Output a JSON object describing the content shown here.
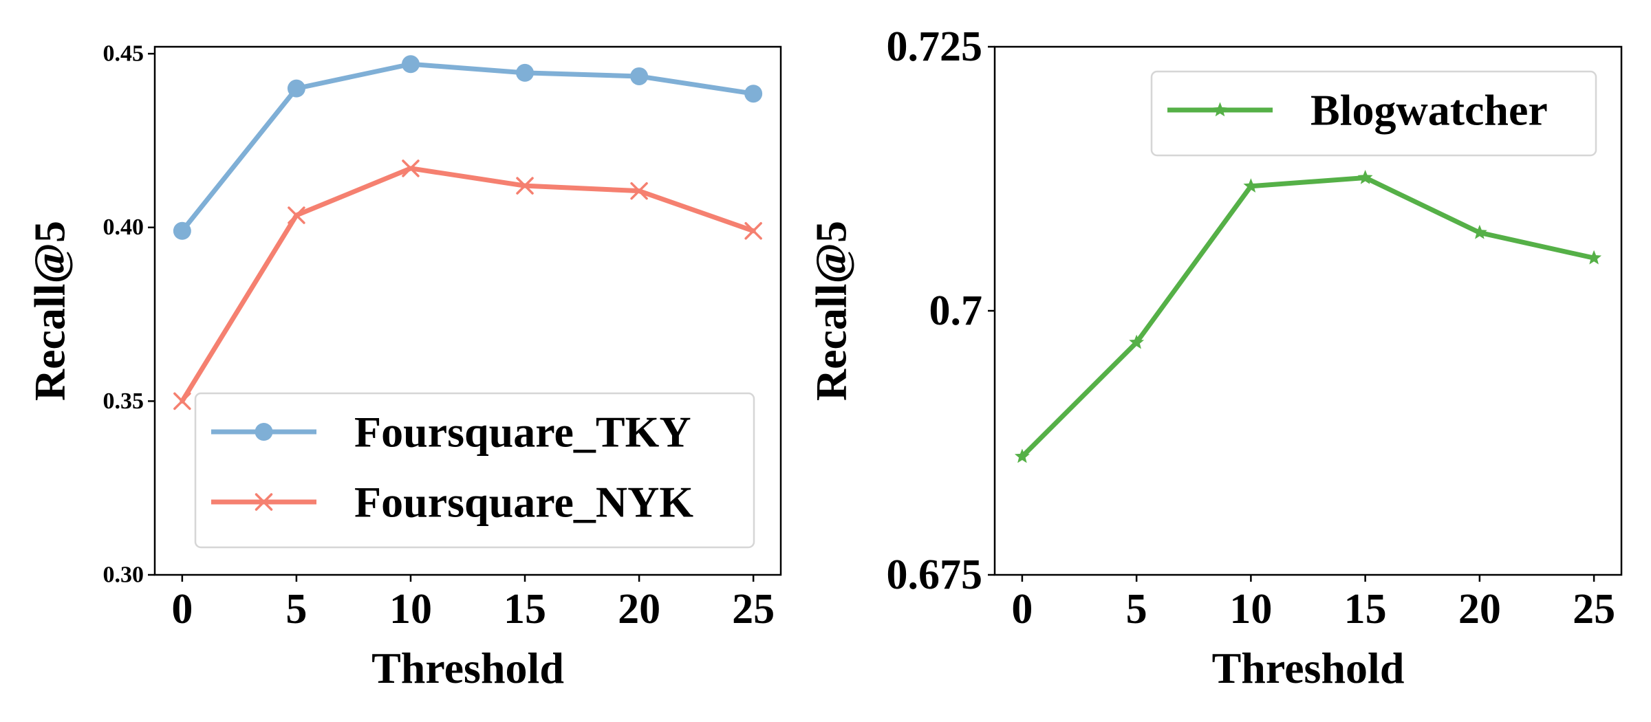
{
  "chart_data": [
    {
      "type": "line",
      "title": "",
      "xlabel": "Threshold",
      "ylabel": "Recall@5",
      "x": [
        0,
        5,
        10,
        15,
        20,
        25
      ],
      "xlim": [
        -1.2,
        26.2
      ],
      "ylim": [
        0.3,
        0.452
      ],
      "yticks": [
        0.3,
        0.35,
        0.4,
        0.45
      ],
      "ytick_labels": [
        "0.30",
        "0.35",
        "0.40",
        "0.45"
      ],
      "xtick_labels": [
        "0",
        "5",
        "10",
        "15",
        "20",
        "25"
      ],
      "grid": false,
      "legend_position": "bottom-right",
      "series": [
        {
          "name": "Foursquare_TKY",
          "color": "#7fafd6",
          "marker": "circle",
          "values": [
            0.399,
            0.44,
            0.447,
            0.4445,
            0.4435,
            0.4385
          ]
        },
        {
          "name": "Foursquare_NYK",
          "color": "#f58070",
          "marker": "x",
          "values": [
            0.35,
            0.4035,
            0.417,
            0.412,
            0.4105,
            0.399
          ]
        }
      ]
    },
    {
      "type": "line",
      "title": "",
      "xlabel": "Threshold",
      "ylabel": "Recall@5",
      "x": [
        0,
        5,
        10,
        15,
        20,
        25
      ],
      "xlim": [
        -1.2,
        26.2
      ],
      "ylim": [
        0.675,
        0.725
      ],
      "yticks": [
        0.675,
        0.7,
        0.725
      ],
      "ytick_labels": [
        "0.675",
        "0.7",
        "0.725"
      ],
      "xtick_labels": [
        "0",
        "5",
        "10",
        "15",
        "20",
        "25"
      ],
      "grid": false,
      "legend_position": "top-right",
      "series": [
        {
          "name": "Blogwatcher",
          "color": "#55b047",
          "marker": "star",
          "values": [
            0.6862,
            0.697,
            0.7118,
            0.7126,
            0.7074,
            0.705
          ]
        }
      ]
    }
  ]
}
